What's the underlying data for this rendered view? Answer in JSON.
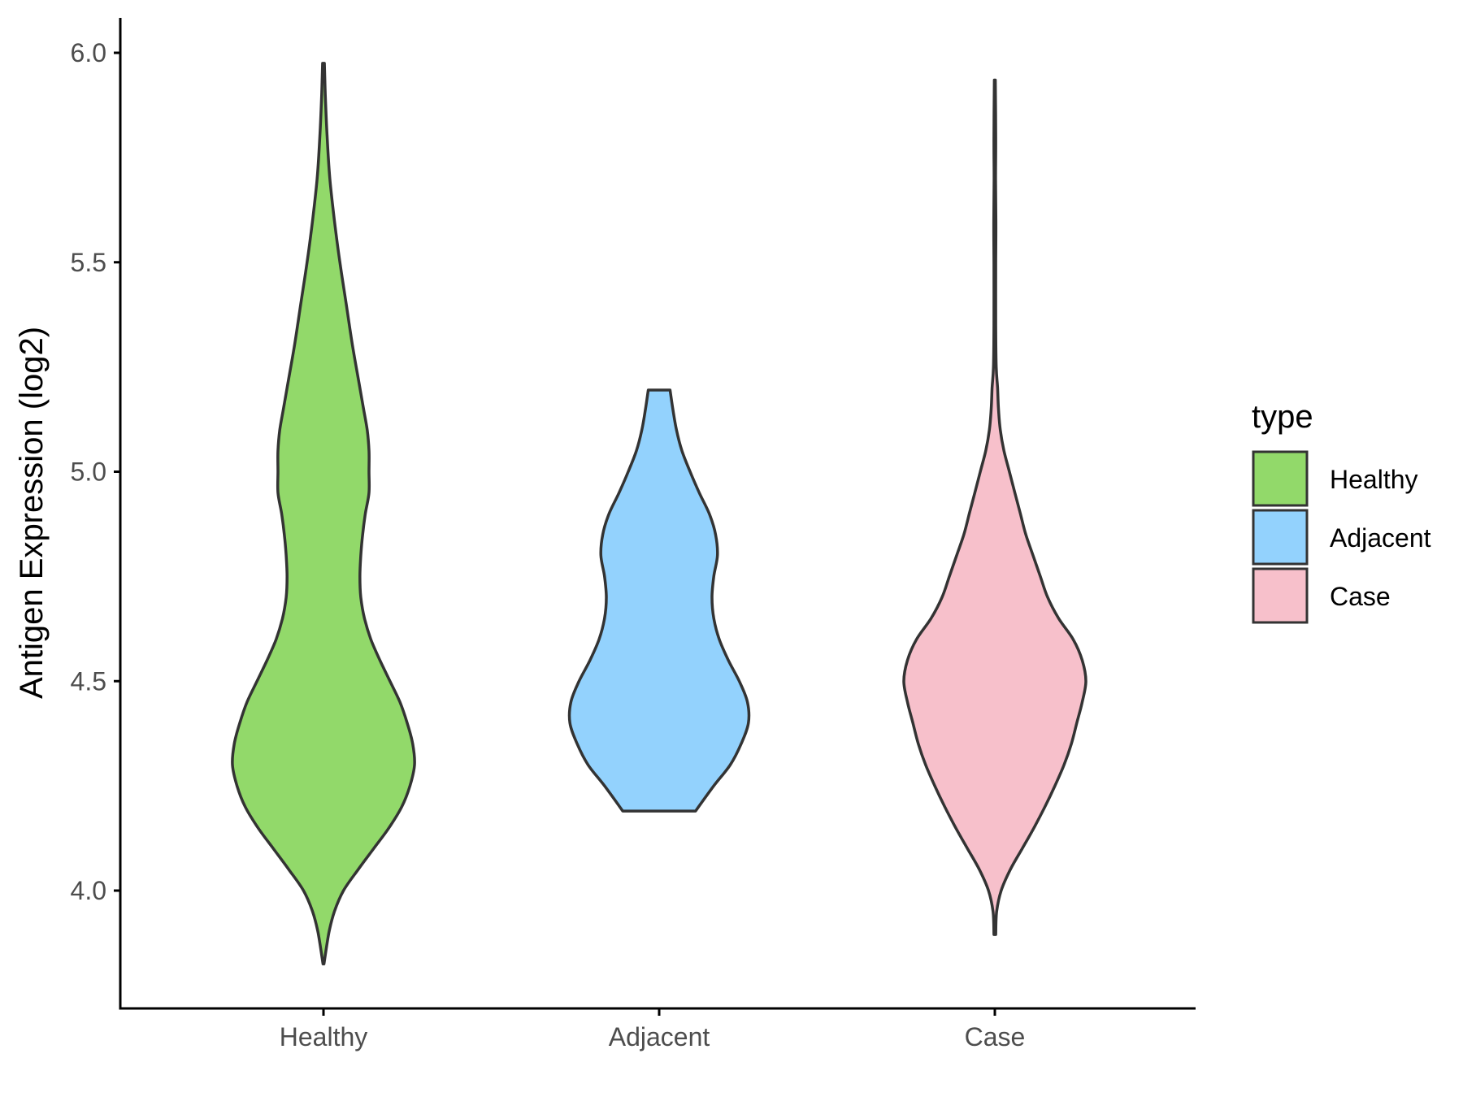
{
  "chart_data": {
    "type": "violin",
    "title": "",
    "xlabel": "",
    "ylabel": "Antigen Expression (log2)",
    "ylim": [
      3.77,
      6.08
    ],
    "yticks": [
      4.0,
      4.5,
      5.0,
      5.5,
      6.0
    ],
    "ytick_labels": [
      "4.0",
      "4.5",
      "5.0",
      "5.5",
      "6.0"
    ],
    "categories": [
      "Healthy",
      "Adjacent",
      "Case"
    ],
    "legend": {
      "title": "type",
      "position": "right",
      "entries": [
        "Healthy",
        "Adjacent",
        "Case"
      ]
    },
    "colors": {
      "Healthy": "#92d96a",
      "Adjacent": "#93d2fd",
      "Case": "#f7c0cb",
      "outline": "#333333",
      "axis": "#000000"
    },
    "series": [
      {
        "category": "Healthy",
        "color": "#92d96a",
        "y_min": 3.825,
        "y_max": 5.975,
        "profile": [
          [
            3.825,
            0.005
          ],
          [
            3.9,
            0.06
          ],
          [
            3.95,
            0.12
          ],
          [
            4.0,
            0.22
          ],
          [
            4.05,
            0.38
          ],
          [
            4.1,
            0.55
          ],
          [
            4.15,
            0.72
          ],
          [
            4.2,
            0.86
          ],
          [
            4.25,
            0.95
          ],
          [
            4.3,
            1.0
          ],
          [
            4.35,
            0.98
          ],
          [
            4.4,
            0.92
          ],
          [
            4.45,
            0.84
          ],
          [
            4.5,
            0.73
          ],
          [
            4.55,
            0.62
          ],
          [
            4.6,
            0.52
          ],
          [
            4.65,
            0.45
          ],
          [
            4.7,
            0.41
          ],
          [
            4.75,
            0.4
          ],
          [
            4.8,
            0.41
          ],
          [
            4.85,
            0.43
          ],
          [
            4.9,
            0.46
          ],
          [
            4.95,
            0.5
          ],
          [
            5.0,
            0.5
          ],
          [
            5.05,
            0.5
          ],
          [
            5.1,
            0.48
          ],
          [
            5.15,
            0.44
          ],
          [
            5.2,
            0.4
          ],
          [
            5.3,
            0.32
          ],
          [
            5.4,
            0.25
          ],
          [
            5.5,
            0.18
          ],
          [
            5.6,
            0.12
          ],
          [
            5.7,
            0.07
          ],
          [
            5.8,
            0.04
          ],
          [
            5.9,
            0.02
          ],
          [
            5.975,
            0.01
          ]
        ]
      },
      {
        "category": "Adjacent",
        "color": "#93d2fd",
        "y_min": 4.19,
        "y_max": 5.195,
        "profile": [
          [
            4.19,
            0.4
          ],
          [
            4.25,
            0.6
          ],
          [
            4.3,
            0.78
          ],
          [
            4.35,
            0.9
          ],
          [
            4.4,
            0.98
          ],
          [
            4.45,
            0.97
          ],
          [
            4.5,
            0.88
          ],
          [
            4.55,
            0.76
          ],
          [
            4.6,
            0.66
          ],
          [
            4.65,
            0.6
          ],
          [
            4.7,
            0.58
          ],
          [
            4.75,
            0.6
          ],
          [
            4.8,
            0.64
          ],
          [
            4.85,
            0.62
          ],
          [
            4.9,
            0.55
          ],
          [
            4.95,
            0.44
          ],
          [
            5.0,
            0.34
          ],
          [
            5.05,
            0.25
          ],
          [
            5.1,
            0.19
          ],
          [
            5.15,
            0.15
          ],
          [
            5.195,
            0.12
          ]
        ]
      },
      {
        "category": "Case",
        "color": "#f7c0cb",
        "y_min": 3.895,
        "y_max": 5.935,
        "profile": [
          [
            3.895,
            0.01
          ],
          [
            3.95,
            0.02
          ],
          [
            4.0,
            0.07
          ],
          [
            4.05,
            0.17
          ],
          [
            4.1,
            0.3
          ],
          [
            4.15,
            0.43
          ],
          [
            4.2,
            0.55
          ],
          [
            4.25,
            0.66
          ],
          [
            4.3,
            0.76
          ],
          [
            4.35,
            0.84
          ],
          [
            4.4,
            0.9
          ],
          [
            4.45,
            0.96
          ],
          [
            4.5,
            1.0
          ],
          [
            4.55,
            0.96
          ],
          [
            4.6,
            0.86
          ],
          [
            4.65,
            0.7
          ],
          [
            4.7,
            0.58
          ],
          [
            4.75,
            0.5
          ],
          [
            4.8,
            0.42
          ],
          [
            4.85,
            0.34
          ],
          [
            4.9,
            0.28
          ],
          [
            4.95,
            0.22
          ],
          [
            5.0,
            0.16
          ],
          [
            5.05,
            0.1
          ],
          [
            5.1,
            0.06
          ],
          [
            5.15,
            0.04
          ],
          [
            5.2,
            0.03
          ],
          [
            5.25,
            0.015
          ],
          [
            5.35,
            0.01
          ],
          [
            5.5,
            0.01
          ],
          [
            5.6,
            0.012
          ],
          [
            5.7,
            0.008
          ],
          [
            5.8,
            0.01
          ],
          [
            5.935,
            0.005
          ]
        ]
      }
    ]
  }
}
